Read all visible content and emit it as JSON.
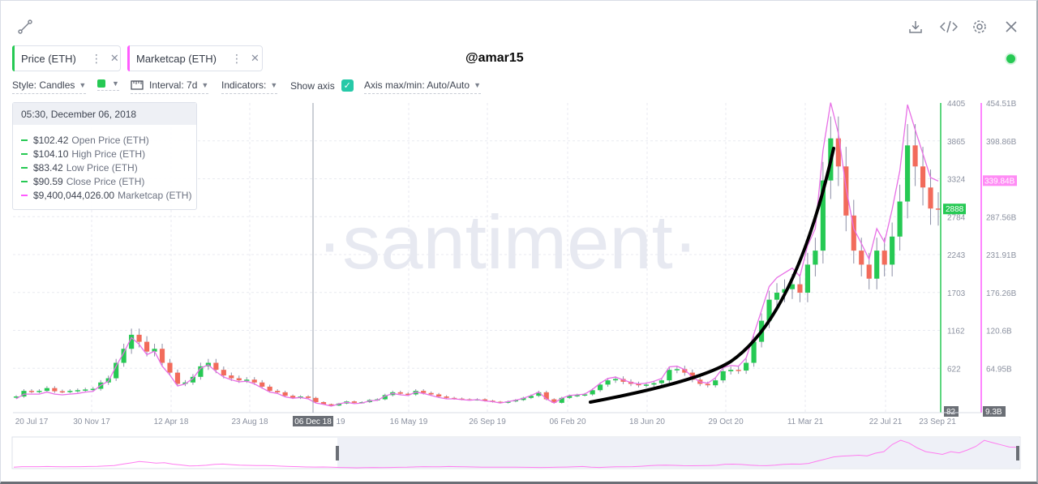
{
  "toolbar": {
    "icons": [
      "chart-line-icon",
      "download-icon",
      "embed-code-icon",
      "settings-gear-icon",
      "close-icon"
    ],
    "handle": "@amar15"
  },
  "metrics": [
    {
      "label": "Price (ETH)",
      "color": "#26c953",
      "more": "⋮",
      "close": "✕"
    },
    {
      "label": "Marketcap (ETH)",
      "color": "#ff5bff",
      "more": "⋮",
      "close": "✕"
    }
  ],
  "options": {
    "style": "Style: Candles",
    "interval": "Interval: 7d",
    "indicators": "Indicators:",
    "show_axis": "Show axis",
    "axis_max_min": "Axis max/min: Auto/Auto"
  },
  "tooltip": {
    "date": "05:30, December 06, 2018",
    "rows": [
      {
        "value": "$102.42",
        "name": "Open Price (ETH)",
        "color": "#26c953"
      },
      {
        "value": "$104.10",
        "name": "High Price (ETH)",
        "color": "#26c953"
      },
      {
        "value": "$83.42",
        "name": "Low Price (ETH)",
        "color": "#26c953"
      },
      {
        "value": "$90.59",
        "name": "Close Price (ETH)",
        "color": "#26c953"
      },
      {
        "value": "$9,400,044,026.00",
        "name": "Marketcap (ETH)",
        "color": "#ff5bff"
      }
    ]
  },
  "chart_data": {
    "type": "line",
    "watermark": "·santiment·",
    "x_ticks": [
      "20 Jul 17",
      "30 Nov 17",
      "12 Apr 18",
      "23 Aug 18",
      "06 Dec 18",
      "16 May 19",
      "26 Sep 19",
      "06 Feb 20",
      "18 Jun 20",
      "29 Oct 20",
      "11 Mar 21",
      "22 Jul 21",
      "23 Sep 21"
    ],
    "x_tick_partial": "19",
    "highlighted_x_tick": "06 Dec 18",
    "price_axis": {
      "ticks": [
        "4405",
        "3865",
        "3324",
        "2784",
        "2243",
        "1703",
        "1162",
        "622",
        "82"
      ],
      "ylim": [
        82,
        4405
      ],
      "current_label": "2888"
    },
    "marketcap_axis": {
      "ticks": [
        "454.51B",
        "398.86B",
        "339.84B",
        "287.56B",
        "231.91B",
        "176.26B",
        "120.6B",
        "64.95B",
        "9.3B"
      ],
      "ylim": [
        9.3,
        454.51
      ],
      "current_label": "339.84B"
    },
    "series": [
      {
        "name": "Price (ETH)",
        "kind": "candles",
        "color_up": "#26c953",
        "color_down": "#f26b5b",
        "values": [
          220,
          300,
          290,
          300,
          340,
          295,
          290,
          300,
          310,
          320,
          330,
          420,
          480,
          700,
          900,
          1100,
          1000,
          860,
          900,
          700,
          560,
          400,
          420,
          500,
          650,
          700,
          600,
          520,
          480,
          450,
          460,
          420,
          360,
          300,
          280,
          230,
          200,
          220,
          200,
          140,
          110,
          91,
          120,
          150,
          130,
          140,
          170,
          180,
          240,
          280,
          260,
          250,
          300,
          270,
          250,
          220,
          200,
          190,
          180,
          175,
          180,
          160,
          145,
          130,
          150,
          170,
          200,
          230,
          280,
          180,
          130,
          200,
          230,
          240,
          250,
          310,
          390,
          450,
          470,
          430,
          400,
          380,
          390,
          410,
          450,
          600,
          610,
          560,
          460,
          400,
          380,
          450,
          580,
          600,
          590,
          700,
          1000,
          1300,
          1600,
          1700,
          1750,
          1820,
          1700,
          2100,
          2300,
          3300,
          3900,
          3500,
          2800,
          2300,
          2100,
          1900,
          2300,
          2100,
          2500,
          3000,
          3800,
          3500,
          3200,
          2900,
          2888
        ]
      },
      {
        "name": "Marketcap (ETH)",
        "kind": "line",
        "color": "#e86fe6",
        "values": [
          20,
          27,
          27,
          27,
          30,
          27,
          26,
          27,
          28,
          30,
          31,
          40,
          46,
          68,
          88,
          110,
          100,
          85,
          90,
          68,
          55,
          39,
          42,
          50,
          65,
          70,
          60,
          52,
          48,
          45,
          46,
          42,
          36,
          30,
          28,
          23,
          21,
          22,
          20,
          14,
          12,
          9.4,
          12.5,
          15,
          13,
          14,
          17,
          18,
          24,
          28,
          26,
          25,
          30,
          28,
          25,
          22,
          20,
          20,
          19,
          18,
          19,
          17,
          16,
          14,
          16,
          18,
          21,
          25,
          30,
          20,
          14,
          21,
          25,
          26,
          27,
          34,
          43,
          50,
          52,
          48,
          44,
          42,
          43,
          46,
          50,
          67,
          68,
          63,
          52,
          45,
          43,
          51,
          66,
          69,
          68,
          80,
          115,
          150,
          185,
          198,
          205,
          212,
          200,
          245,
          270,
          385,
          455,
          410,
          330,
          270,
          248,
          225,
          270,
          250,
          298,
          355,
          452,
          415,
          380,
          345,
          339.84
        ]
      }
    ]
  }
}
